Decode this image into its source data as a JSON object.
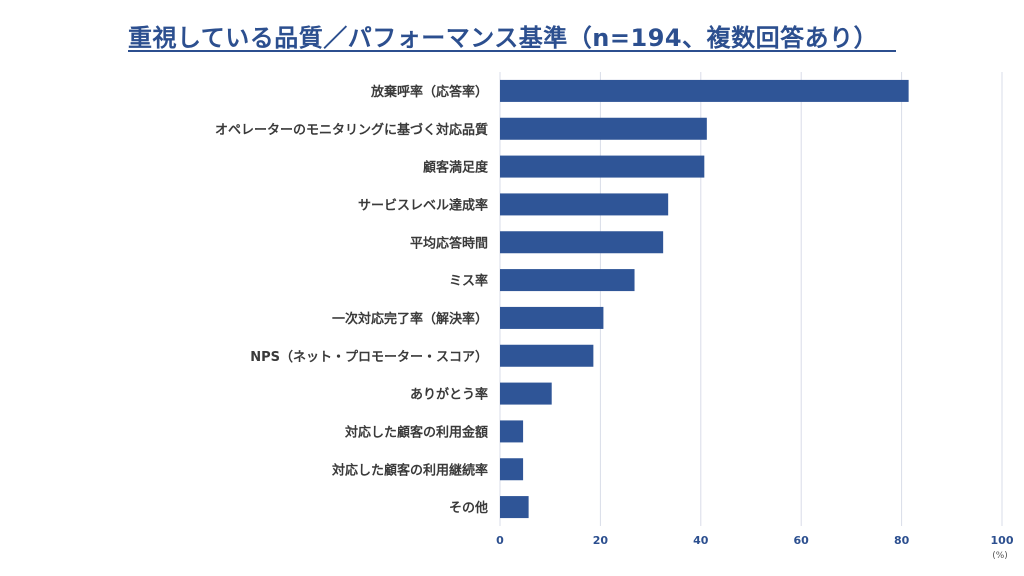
{
  "chart_data": {
    "type": "bar",
    "orientation": "horizontal",
    "title": "重視している品質／パフォーマンス基準（n=194、複数回答あり）",
    "categories": [
      "放棄呼率（応答率）",
      "オペレーターのモニタリングに基づく対応品質",
      "顧客満足度",
      "サービスレベル達成率",
      "平均応答時間",
      "ミス率",
      "一次対応完了率（解決率）",
      "NPS（ネット・プロモーター・スコア）",
      "ありがとう率",
      "対応した顧客の利用金額",
      "対応した顧客の利用継続率",
      "その他"
    ],
    "values": [
      81.4,
      41.2,
      40.7,
      33.5,
      32.5,
      26.8,
      20.6,
      18.6,
      10.3,
      4.6,
      4.6,
      5.7
    ],
    "xlim": [
      0,
      100
    ],
    "xticks": [
      0,
      20,
      40,
      60,
      80,
      100
    ],
    "xunit": "(%)",
    "grid": true,
    "bar_color": "#2f5597",
    "grid_color": "#d9dce8"
  }
}
